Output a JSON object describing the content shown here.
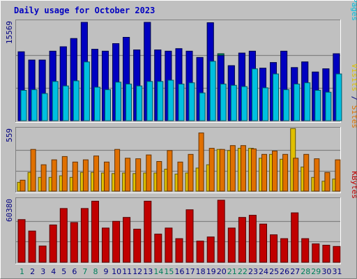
{
  "chart_data": {
    "title": "Daily usage for October 2023",
    "days": [
      "1",
      "2",
      "3",
      "4",
      "5",
      "6",
      "7",
      "8",
      "9",
      "10",
      "11",
      "12",
      "13",
      "14",
      "15",
      "16",
      "17",
      "18",
      "19",
      "20",
      "21",
      "22",
      "23",
      "24",
      "25",
      "26",
      "27",
      "28",
      "29",
      "30",
      "31"
    ],
    "weekend_days": [
      "1",
      "7",
      "8",
      "14",
      "15",
      "21",
      "22",
      "28",
      "29"
    ],
    "colors": {
      "background": "#c0c0c0",
      "plot": "#c0c0c0",
      "weekday_text": "#000080",
      "weekend_text": "#00805c",
      "title": "#0000c0",
      "hits": "#00805c",
      "files": "#0000c0",
      "pages": "#00c0e0",
      "visits": "#e0c000",
      "sites": "#e07000",
      "kbytes": "#c00000"
    },
    "panels": [
      {
        "name": "hits-files-pages",
        "max_label": "15569",
        "max": 15569,
        "side_label": {
          "parts": [
            {
              "text": "Pages",
              "color": "#00c0e0"
            },
            {
              "text": " / ",
              "color": "#000080"
            },
            {
              "text": "Files",
              "color": "#0000c0"
            },
            {
              "text": " / ",
              "color": "#000080"
            },
            {
              "text": "Hits",
              "color": "#00805c"
            }
          ]
        },
        "series": [
          {
            "name": "Hits",
            "color": "#00805c",
            "values": [
              10900,
              9600,
              9600,
              11000,
              11700,
              13000,
              15569,
              11300,
              11000,
              12200,
              13200,
              11200,
              15569,
              11200,
              11000,
              11400,
              11000,
              10000,
              15500,
              10600,
              8700,
              10700,
              11000,
              8300,
              9200,
              11000,
              8400,
              9300,
              7700,
              8200,
              10600
            ]
          },
          {
            "name": "Files",
            "color": "#0000c0",
            "values": [
              10900,
              9600,
              9600,
              11000,
              11700,
              13000,
              15569,
              11300,
              11000,
              12200,
              13200,
              11200,
              15569,
              11200,
              11000,
              11400,
              11000,
              10000,
              15500,
              10300,
              8700,
              10700,
              11000,
              8300,
              9200,
              11000,
              8400,
              9300,
              7700,
              8200,
              10600
            ]
          },
          {
            "name": "Pages",
            "color": "#00c0e0",
            "values": [
              4800,
              4900,
              4300,
              6200,
              5500,
              6300,
              9300,
              5300,
              4900,
              6100,
              5800,
              5500,
              6200,
              6200,
              6400,
              5800,
              6000,
              4400,
              9400,
              5800,
              5600,
              5400,
              8200,
              5200,
              7400,
              4900,
              5800,
              6000,
              4800,
              4500,
              7400
            ]
          }
        ]
      },
      {
        "name": "visits-sites",
        "max_label": "559",
        "max": 559,
        "side_label": {
          "parts": [
            {
              "text": "Sites",
              "color": "#e07000"
            },
            {
              "text": " / ",
              "color": "#000080"
            },
            {
              "text": "Visits",
              "color": "#e0c000"
            }
          ]
        },
        "series": [
          {
            "name": "Visits",
            "color": "#e0c000",
            "values": [
              80,
              170,
              125,
              125,
              140,
              125,
              170,
              170,
              165,
              160,
              165,
              160,
              165,
              165,
              200,
              155,
              165,
              210,
              240,
              380,
              370,
              390,
              390,
              300,
              335,
              290,
              570,
              220,
              125,
              90,
              110
            ]
          },
          {
            "name": "Sites",
            "color": "#e07000",
            "values": [
              100,
              380,
              240,
              285,
              315,
              265,
              285,
              320,
              265,
              380,
              300,
              295,
              330,
              270,
              370,
              265,
              335,
              530,
              390,
              380,
              415,
              415,
              385,
              335,
              365,
              335,
              300,
              335,
              295,
              170,
              285
            ]
          }
        ]
      },
      {
        "name": "kbytes",
        "max_label": "60380",
        "max": 60380,
        "side_label": {
          "parts": [
            {
              "text": "KBytes",
              "color": "#c00000"
            }
          ]
        },
        "series": [
          {
            "name": "KBytes",
            "color": "#c00000",
            "values": [
              41500,
              30400,
              15800,
              36300,
              52300,
              38700,
              52300,
              59400,
              33300,
              39800,
              43600,
              32200,
              59400,
              27400,
              33300,
              23000,
              51100,
              20600,
              24600,
              60380,
              33300,
              43600,
              45700,
              37200,
              26700,
              23000,
              48100,
              23000,
              17900,
              16600,
              15400
            ]
          }
        ]
      }
    ]
  }
}
